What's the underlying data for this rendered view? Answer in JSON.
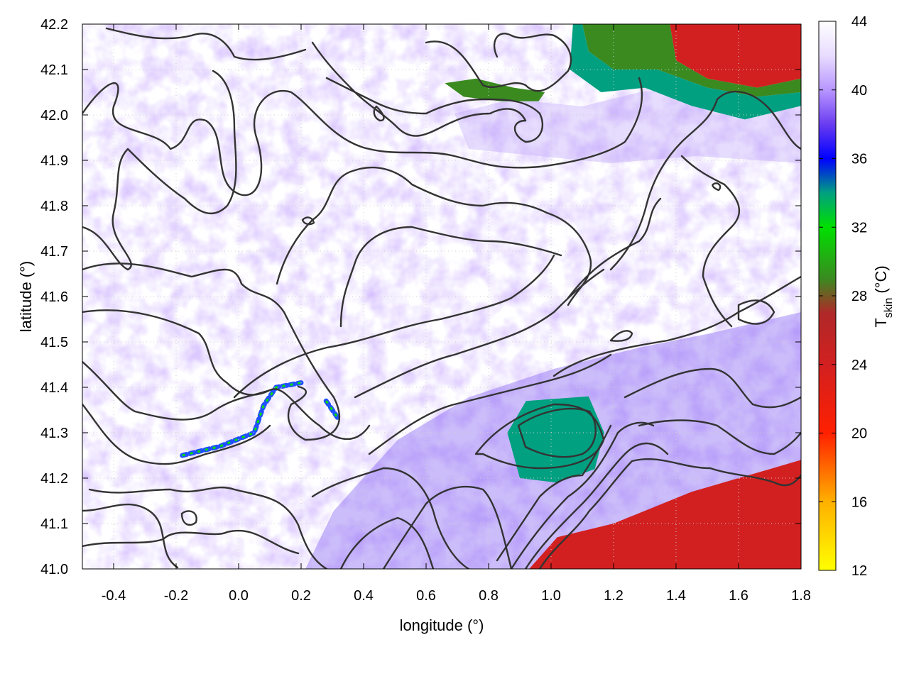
{
  "chart_data": {
    "type": "heatmap",
    "title": "",
    "xlabel": "longitude (°)",
    "ylabel": "latitude (°)",
    "xlim": [
      -0.5,
      1.8
    ],
    "ylim": [
      41.0,
      42.2
    ],
    "x_ticks": [
      -0.4,
      -0.2,
      0.0,
      0.2,
      0.4,
      0.6,
      0.8,
      1.0,
      1.2,
      1.4,
      1.6,
      1.8
    ],
    "x_tick_labels": [
      "-0.4",
      "-0.2",
      "0.0",
      "0.2",
      "0.4",
      "0.6",
      "0.8",
      "1.0",
      "1.2",
      "1.4",
      "1.6",
      "1.8"
    ],
    "y_ticks": [
      41.0,
      41.1,
      41.2,
      41.3,
      41.4,
      41.5,
      41.6,
      41.7,
      41.8,
      41.9,
      42.0,
      42.1,
      42.2
    ],
    "y_tick_labels": [
      "41.0",
      "41.1",
      "41.2",
      "41.3",
      "41.4",
      "41.5",
      "41.6",
      "41.7",
      "41.8",
      "41.9",
      "42.0",
      "42.1",
      "42.2"
    ],
    "grid": true,
    "colorbar": {
      "label_main": "T",
      "label_sub": "skin",
      "label_unit": " (°C)",
      "min": 12,
      "max": 44,
      "ticks": [
        12,
        16,
        20,
        24,
        28,
        32,
        36,
        40,
        44
      ],
      "tick_labels": [
        "12",
        "16",
        "20",
        "24",
        "28",
        "32",
        "36",
        "40",
        "44"
      ],
      "colors": [
        {
          "value": 12,
          "color": "#ffff00"
        },
        {
          "value": 16,
          "color": "#ffb000"
        },
        {
          "value": 20,
          "color": "#ff2000"
        },
        {
          "value": 24,
          "color": "#d22020"
        },
        {
          "value": 27,
          "color": "#b02828"
        },
        {
          "value": 29,
          "color": "#3a8a20"
        },
        {
          "value": 32,
          "color": "#00e000"
        },
        {
          "value": 34,
          "color": "#00a080"
        },
        {
          "value": 36,
          "color": "#0000ff"
        },
        {
          "value": 38,
          "color": "#6a3cf0"
        },
        {
          "value": 40,
          "color": "#b896ff"
        },
        {
          "value": 42,
          "color": "#e8dcff"
        },
        {
          "value": 44,
          "color": "#ffffff"
        }
      ]
    },
    "regions": [
      {
        "name": "sea",
        "temp": 25,
        "polygon": [
          [
            0.93,
            41.0
          ],
          [
            1.02,
            41.07
          ],
          [
            1.2,
            41.1
          ],
          [
            1.45,
            41.17
          ],
          [
            1.7,
            41.22
          ],
          [
            1.8,
            41.24
          ],
          [
            1.8,
            41.0
          ]
        ]
      },
      {
        "name": "mountain-ne",
        "temp": 27,
        "polygon": [
          [
            1.38,
            42.2
          ],
          [
            1.8,
            42.2
          ],
          [
            1.8,
            42.08
          ],
          [
            1.66,
            42.06
          ],
          [
            1.5,
            42.08
          ],
          [
            1.4,
            42.12
          ]
        ]
      },
      {
        "name": "green-ne",
        "temp": 31,
        "polygon": [
          [
            1.1,
            42.2
          ],
          [
            1.38,
            42.2
          ],
          [
            1.4,
            42.12
          ],
          [
            1.5,
            42.08
          ],
          [
            1.66,
            42.06
          ],
          [
            1.8,
            42.08
          ],
          [
            1.8,
            42.05
          ],
          [
            1.66,
            42.04
          ],
          [
            1.5,
            42.06
          ],
          [
            1.34,
            42.1
          ],
          [
            1.2,
            42.1
          ],
          [
            1.12,
            42.14
          ]
        ]
      },
      {
        "name": "blue-ne",
        "temp": 36,
        "polygon": [
          [
            1.07,
            42.2
          ],
          [
            1.1,
            42.2
          ],
          [
            1.12,
            42.14
          ],
          [
            1.2,
            42.1
          ],
          [
            1.34,
            42.1
          ],
          [
            1.5,
            42.06
          ],
          [
            1.66,
            42.04
          ],
          [
            1.8,
            42.05
          ],
          [
            1.8,
            42.02
          ],
          [
            1.62,
            41.99
          ],
          [
            1.45,
            42.02
          ],
          [
            1.3,
            42.06
          ],
          [
            1.16,
            42.05
          ],
          [
            1.06,
            42.1
          ]
        ]
      },
      {
        "name": "green-ridge",
        "temp": 32,
        "polygon": [
          [
            0.66,
            42.07
          ],
          [
            0.76,
            42.08
          ],
          [
            0.88,
            42.06
          ],
          [
            0.98,
            42.05
          ],
          [
            0.96,
            42.03
          ],
          [
            0.84,
            42.03
          ],
          [
            0.72,
            42.04
          ]
        ]
      },
      {
        "name": "green-center",
        "temp": 31,
        "polygon": [
          [
            0.97,
            41.36
          ],
          [
            1.1,
            41.36
          ],
          [
            1.14,
            41.3
          ],
          [
            1.12,
            41.24
          ],
          [
            1.03,
            41.22
          ],
          [
            0.96,
            41.26
          ],
          [
            0.94,
            41.31
          ]
        ]
      },
      {
        "name": "blue-center",
        "temp": 36,
        "polygon": [
          [
            0.92,
            41.37
          ],
          [
            1.12,
            41.38
          ],
          [
            1.17,
            41.3
          ],
          [
            1.14,
            41.22
          ],
          [
            1.02,
            41.19
          ],
          [
            0.9,
            41.2
          ],
          [
            0.86,
            41.3
          ]
        ]
      }
    ],
    "streaks": [
      {
        "name": "streak-west",
        "temp": 33,
        "points": [
          [
            -0.18,
            41.25
          ],
          [
            -0.06,
            41.27
          ],
          [
            0.05,
            41.3
          ],
          [
            0.08,
            41.36
          ],
          [
            0.12,
            41.4
          ],
          [
            0.2,
            41.41
          ]
        ]
      },
      {
        "name": "streak-east",
        "temp": 33,
        "points": [
          [
            0.28,
            41.37
          ],
          [
            0.32,
            41.33
          ]
        ]
      }
    ]
  }
}
